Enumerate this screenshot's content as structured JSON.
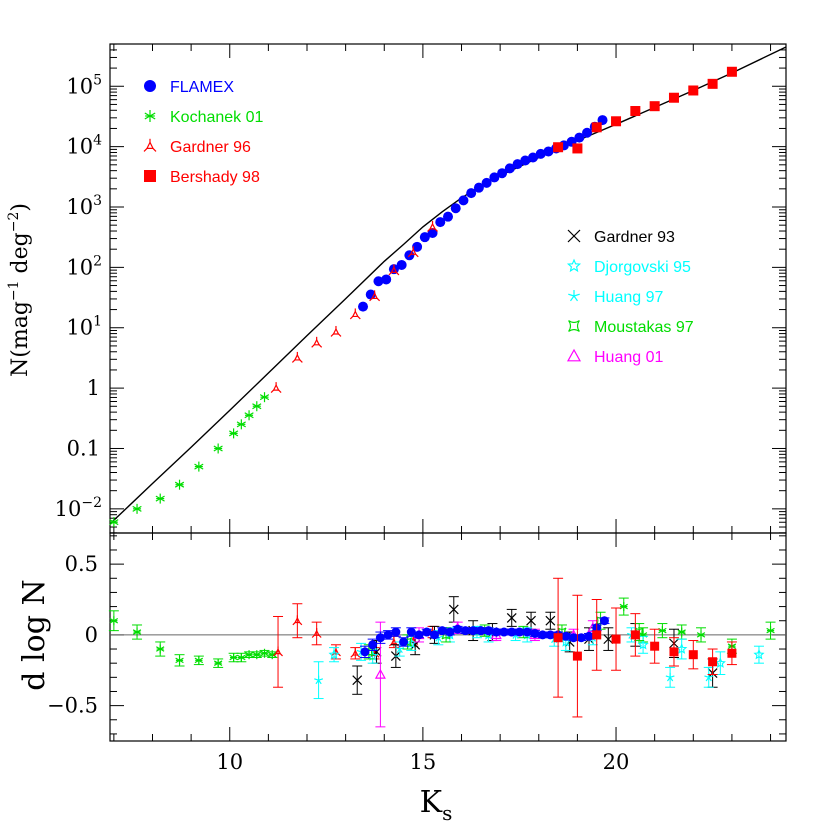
{
  "chart_data": [
    {
      "type": "scatter",
      "panel": "upper",
      "xlabel": "K_s",
      "ylabel": "N(mag^-1 deg^-2)",
      "ylabel_parts": {
        "main": "N(mag",
        "exp1": "−1",
        "mid": " deg",
        "exp2": "−2",
        "end": ")"
      },
      "xlim": [
        6.9,
        24.4
      ],
      "ylim_log10": [
        -2.4,
        5.7
      ],
      "y_scale": "log",
      "y_tick_labels": [
        {
          "v": -2,
          "base": "10",
          "exp": "−2"
        },
        {
          "v": -1,
          "base": "0.1",
          "exp": ""
        },
        {
          "v": 0,
          "base": "1",
          "exp": ""
        },
        {
          "v": 1,
          "base": "10",
          "exp": "1"
        },
        {
          "v": 2,
          "base": "10",
          "exp": "2"
        },
        {
          "v": 3,
          "base": "10",
          "exp": "3"
        },
        {
          "v": 4,
          "base": "10",
          "exp": "4"
        },
        {
          "v": 5,
          "base": "10",
          "exp": "5"
        }
      ],
      "model_curve": {
        "x": [
          6.9,
          8,
          9,
          10,
          11,
          12,
          13,
          14,
          14.5,
          15,
          15.5,
          16,
          16.5,
          17,
          17.5,
          18,
          19,
          20,
          21,
          22,
          23,
          24.4
        ],
        "log_y": [
          -2.25,
          -1.58,
          -0.98,
          -0.37,
          0.25,
          0.87,
          1.48,
          2.1,
          2.38,
          2.67,
          2.92,
          3.15,
          3.35,
          3.52,
          3.67,
          3.82,
          4.1,
          4.37,
          4.65,
          4.93,
          5.22,
          5.65
        ]
      },
      "series": [
        {
          "name": "FLAMEX",
          "color": "#0000ff",
          "marker": "filled-circle",
          "x": [
            13.45,
            13.65,
            13.85,
            14.05,
            14.25,
            14.45,
            14.65,
            14.85,
            15.05,
            15.25,
            15.45,
            15.65,
            15.85,
            16.05,
            16.25,
            16.45,
            16.65,
            16.85,
            17.05,
            17.25,
            17.45,
            17.65,
            17.85,
            18.05,
            18.25,
            18.45,
            18.65,
            18.85,
            19.05,
            19.25,
            19.45,
            19.65
          ],
          "log_y": [
            1.35,
            1.55,
            1.77,
            1.8,
            1.97,
            2.04,
            2.2,
            2.34,
            2.5,
            2.57,
            2.75,
            2.84,
            2.98,
            3.11,
            3.23,
            3.32,
            3.4,
            3.49,
            3.56,
            3.64,
            3.71,
            3.77,
            3.82,
            3.88,
            3.92,
            3.97,
            4.02,
            4.08,
            4.15,
            4.23,
            4.33,
            4.44
          ]
        },
        {
          "name": "Kochanek 01",
          "color": "#00dd00",
          "marker": "asterisk",
          "x": [
            7.0,
            7.6,
            8.2,
            8.7,
            9.2,
            9.7,
            10.1,
            10.3,
            10.5,
            10.7,
            10.9
          ],
          "log_y": [
            -2.22,
            -2.0,
            -1.83,
            -1.6,
            -1.3,
            -1.0,
            -0.75,
            -0.6,
            -0.45,
            -0.3,
            -0.15
          ]
        },
        {
          "name": "Gardner 96",
          "color": "#ff0000",
          "marker": "open-triangle-arms",
          "x": [
            11.2,
            11.75,
            12.25,
            12.75,
            13.25,
            13.75,
            14.25,
            14.75,
            15.25
          ],
          "log_y": [
            0.0,
            0.5,
            0.75,
            0.93,
            1.22,
            1.52,
            1.95,
            2.25,
            2.67
          ]
        },
        {
          "name": "Bershady 98",
          "color": "#ff0000",
          "marker": "filled-square",
          "x": [
            18.5,
            19.0,
            19.5,
            20.0,
            20.5,
            21.0,
            21.5,
            22.0,
            22.5,
            23.0
          ],
          "log_y": [
            3.99,
            3.97,
            4.32,
            4.42,
            4.59,
            4.67,
            4.81,
            4.93,
            5.04,
            5.24
          ]
        }
      ],
      "series_no_points_visible": [
        {
          "name": "Gardner 93",
          "color": "#000000",
          "marker": "x-cross"
        },
        {
          "name": "Djorgovski 95",
          "color": "#00ffff",
          "marker": "open-star"
        },
        {
          "name": "Huang 97",
          "color": "#00ffff",
          "marker": "asterisk-star"
        },
        {
          "name": "Moustakas 97",
          "color": "#00dd00",
          "marker": "open-square-star"
        },
        {
          "name": "Huang 01",
          "color": "#ff00ff",
          "marker": "open-triangle"
        }
      ],
      "legend": {
        "left_placement": "top-left",
        "right_placement": "middle-right"
      }
    },
    {
      "type": "scatter",
      "panel": "lower",
      "xlabel": "K_s",
      "xlabel_parts": {
        "main": "K",
        "sub": "s"
      },
      "ylabel": "d log N",
      "xlim": [
        6.9,
        24.4
      ],
      "ylim": [
        -0.75,
        0.72
      ],
      "x_ticks": [
        10,
        15,
        20
      ],
      "y_ticks": [
        0.5,
        0,
        -0.5
      ],
      "y_tick_labels": [
        "0.5",
        "0",
        "−0.5"
      ],
      "reference_line_y": 0,
      "series": [
        {
          "name": "Kochanek 01",
          "color": "#00dd00",
          "marker": "asterisk",
          "points": [
            [
              7.0,
              0.1,
              0.07
            ],
            [
              7.6,
              0.02,
              0.05
            ],
            [
              8.2,
              -0.1,
              0.05
            ],
            [
              8.7,
              -0.18,
              0.04
            ],
            [
              9.2,
              -0.18,
              0.03
            ],
            [
              9.7,
              -0.2,
              0.03
            ],
            [
              10.1,
              -0.16,
              0.03
            ],
            [
              10.3,
              -0.16,
              0.03
            ],
            [
              10.5,
              -0.14,
              0.02
            ],
            [
              10.7,
              -0.14,
              0.02
            ],
            [
              10.9,
              -0.13,
              0.02
            ],
            [
              11.1,
              -0.14,
              0.02
            ],
            [
              20.2,
              0.2,
              0.06
            ],
            [
              20.7,
              0.0,
              0.05
            ],
            [
              21.2,
              0.03,
              0.05
            ],
            [
              21.7,
              0.02,
              0.05
            ],
            [
              22.2,
              0.0,
              0.05
            ],
            [
              23.0,
              -0.08,
              0.05
            ],
            [
              24.0,
              0.03,
              0.06
            ]
          ]
        },
        {
          "name": "Gardner 96",
          "color": "#ff0000",
          "marker": "open-triangle-arms",
          "points": [
            [
              11.25,
              -0.12,
              0.25
            ],
            [
              11.75,
              0.1,
              0.12
            ],
            [
              12.25,
              0.01,
              0.08
            ],
            [
              12.75,
              -0.12,
              0.05
            ],
            [
              13.25,
              -0.13,
              0.04
            ],
            [
              13.75,
              -0.13,
              0.04
            ],
            [
              14.25,
              -0.05,
              0.04
            ],
            [
              14.75,
              -0.04,
              0.04
            ],
            [
              15.25,
              0.02,
              0.04
            ]
          ]
        },
        {
          "name": "Gardner 93",
          "color": "#000000",
          "marker": "x-cross",
          "points": [
            [
              13.3,
              -0.32,
              0.1
            ],
            [
              13.8,
              -0.12,
              0.08
            ],
            [
              14.3,
              -0.15,
              0.08
            ],
            [
              14.8,
              -0.07,
              0.07
            ],
            [
              15.3,
              0.0,
              0.06
            ],
            [
              15.8,
              0.18,
              0.09
            ],
            [
              16.3,
              0.03,
              0.07
            ],
            [
              16.8,
              0.02,
              0.06
            ],
            [
              17.3,
              0.12,
              0.06
            ],
            [
              17.8,
              0.1,
              0.06
            ],
            [
              18.3,
              0.1,
              0.06
            ],
            [
              18.8,
              -0.05,
              0.07
            ],
            [
              19.3,
              -0.03,
              0.08
            ],
            [
              19.8,
              -0.03,
              0.08
            ],
            [
              20.5,
              0.0,
              0.08
            ],
            [
              21.5,
              -0.06,
              0.1
            ],
            [
              22.5,
              -0.27,
              0.1
            ]
          ]
        },
        {
          "name": "Djorgovski 95",
          "color": "#00ffff",
          "marker": "open-star",
          "points": [
            [
              12.7,
              -0.14,
              0.05
            ],
            [
              13.7,
              -0.15,
              0.05
            ],
            [
              14.7,
              -0.06,
              0.05
            ],
            [
              15.7,
              0.0,
              0.05
            ],
            [
              16.7,
              0.0,
              0.05
            ],
            [
              17.7,
              0.0,
              0.05
            ],
            [
              18.7,
              -0.05,
              0.06
            ],
            [
              20.7,
              -0.07,
              0.06
            ],
            [
              21.7,
              -0.1,
              0.07
            ],
            [
              22.7,
              -0.2,
              0.08
            ],
            [
              23.7,
              -0.14,
              0.06
            ]
          ]
        },
        {
          "name": "Huang 97",
          "color": "#00ffff",
          "marker": "asterisk-star",
          "points": [
            [
              12.3,
              -0.32,
              0.13
            ],
            [
              13.4,
              -0.12,
              0.06
            ],
            [
              14.4,
              -0.1,
              0.05
            ],
            [
              15.4,
              -0.02,
              0.05
            ],
            [
              16.4,
              0.02,
              0.04
            ],
            [
              17.4,
              0.0,
              0.04
            ],
            [
              18.4,
              -0.03,
              0.05
            ],
            [
              19.4,
              -0.02,
              0.05
            ],
            [
              20.4,
              0.0,
              0.05
            ],
            [
              21.4,
              -0.3,
              0.07
            ],
            [
              22.4,
              -0.3,
              0.07
            ]
          ]
        },
        {
          "name": "Moustakas 97",
          "color": "#00dd00",
          "marker": "open-square-star",
          "points": [
            [
              13.6,
              -0.12,
              0.05
            ],
            [
              14.6,
              -0.05,
              0.05
            ],
            [
              15.6,
              0.0,
              0.05
            ],
            [
              16.6,
              0.03,
              0.04
            ],
            [
              17.6,
              0.02,
              0.04
            ],
            [
              18.6,
              0.02,
              0.05
            ],
            [
              19.6,
              0.1,
              0.06
            ],
            [
              20.6,
              0.02,
              0.06
            ]
          ]
        },
        {
          "name": "Huang 01",
          "color": "#ff00ff",
          "marker": "open-triangle",
          "points": [
            [
              13.9,
              -0.28,
              0.37
            ],
            [
              14.9,
              0.0,
              0.05
            ],
            [
              15.9,
              0.05,
              0.04
            ],
            [
              16.9,
              0.0,
              0.04
            ],
            [
              17.9,
              0.0,
              0.04
            ],
            [
              18.9,
              0.0,
              0.04
            ],
            [
              19.4,
              0.05,
              0.05
            ]
          ]
        },
        {
          "name": "FLAMEX",
          "color": "#0000ff",
          "marker": "filled-circle",
          "points": [
            [
              13.5,
              -0.12,
              0.04
            ],
            [
              13.7,
              -0.07,
              0.04
            ],
            [
              13.9,
              -0.02,
              0.04
            ],
            [
              14.1,
              0.0,
              0.03
            ],
            [
              14.3,
              0.02,
              0.03
            ],
            [
              14.5,
              -0.05,
              0.03
            ],
            [
              14.7,
              0.02,
              0.03
            ],
            [
              14.9,
              0.0,
              0.02
            ],
            [
              15.1,
              0.02,
              0.02
            ],
            [
              15.3,
              0.0,
              0.02
            ],
            [
              15.5,
              0.03,
              0.02
            ],
            [
              15.7,
              0.02,
              0.02
            ],
            [
              15.9,
              0.04,
              0.02
            ],
            [
              16.1,
              0.03,
              0.02
            ],
            [
              16.3,
              0.03,
              0.02
            ],
            [
              16.5,
              0.03,
              0.02
            ],
            [
              16.7,
              0.03,
              0.02
            ],
            [
              16.9,
              0.02,
              0.02
            ],
            [
              17.1,
              0.02,
              0.02
            ],
            [
              17.3,
              0.02,
              0.02
            ],
            [
              17.5,
              0.02,
              0.02
            ],
            [
              17.7,
              0.02,
              0.02
            ],
            [
              17.9,
              0.01,
              0.02
            ],
            [
              18.1,
              0.0,
              0.02
            ],
            [
              18.3,
              0.0,
              0.02
            ],
            [
              18.5,
              0.0,
              0.02
            ],
            [
              18.7,
              -0.01,
              0.02
            ],
            [
              18.9,
              -0.02,
              0.02
            ],
            [
              19.1,
              -0.02,
              0.02
            ],
            [
              19.3,
              -0.01,
              0.02
            ],
            [
              19.5,
              0.05,
              0.02
            ],
            [
              19.7,
              0.1,
              0.02
            ]
          ]
        },
        {
          "name": "Bershady 98",
          "color": "#ff0000",
          "marker": "filled-square",
          "points": [
            [
              18.5,
              -0.02,
              0.42
            ],
            [
              19.0,
              -0.15,
              0.43
            ],
            [
              19.5,
              0.0,
              0.25
            ],
            [
              20.0,
              -0.03,
              0.22
            ],
            [
              20.5,
              0.0,
              0.15
            ],
            [
              21.0,
              -0.08,
              0.12
            ],
            [
              21.5,
              -0.12,
              0.1
            ],
            [
              22.0,
              -0.14,
              0.1
            ],
            [
              22.5,
              -0.19,
              0.09
            ],
            [
              23.0,
              -0.13,
              0.08
            ]
          ]
        }
      ]
    }
  ]
}
